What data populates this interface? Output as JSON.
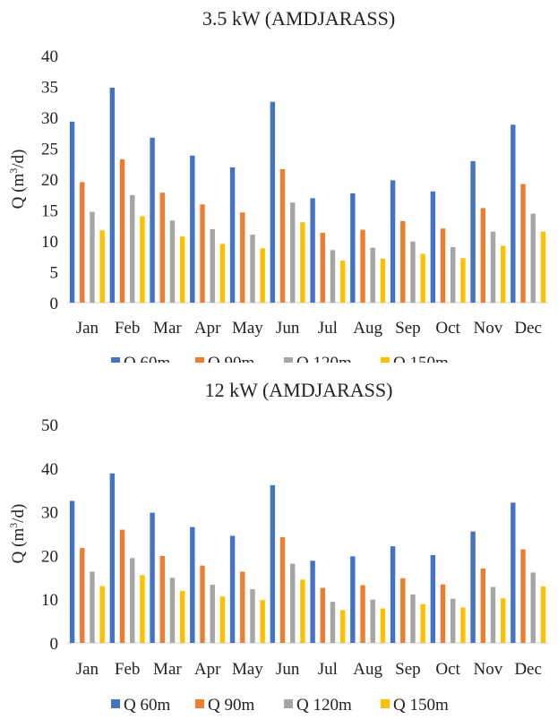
{
  "chart_data": [
    {
      "type": "bar",
      "title": "3.5 kW (AMDJARASS)",
      "xlabel": "",
      "ylabel_main": "Q (m",
      "ylabel_sup": "3",
      "ylabel_tail": "/d)",
      "ylim": [
        0,
        40
      ],
      "yticks": [
        0,
        5,
        10,
        15,
        20,
        25,
        30,
        35,
        40
      ],
      "grid": false,
      "legend_position": "bottom",
      "categories": [
        "Jan",
        "Feb",
        "Mar",
        "Apr",
        "May",
        "Jun",
        "Jul",
        "Aug",
        "Sep",
        "Oct",
        "Nov",
        "Dec"
      ],
      "series": [
        {
          "name": "Q 60m",
          "color": "#4472C4",
          "values": [
            29.3,
            34.8,
            26.7,
            23.8,
            21.9,
            32.5,
            16.9,
            17.7,
            19.8,
            18.0,
            22.9,
            28.8
          ]
        },
        {
          "name": "Q 90m",
          "color": "#ED7D31",
          "values": [
            19.5,
            23.2,
            17.8,
            15.9,
            14.6,
            21.6,
            11.3,
            11.8,
            13.2,
            12.0,
            15.3,
            19.2
          ]
        },
        {
          "name": "Q 120m",
          "color": "#A5A5A5",
          "values": [
            14.7,
            17.4,
            13.3,
            11.9,
            11.0,
            16.2,
            8.5,
            8.9,
            9.9,
            9.0,
            11.5,
            14.4
          ]
        },
        {
          "name": "Q 150m",
          "color": "#FFC000",
          "values": [
            11.7,
            14.0,
            10.7,
            9.5,
            8.8,
            13.0,
            6.8,
            7.1,
            7.9,
            7.2,
            9.2,
            11.5
          ]
        }
      ]
    },
    {
      "type": "bar",
      "title": "12 kW (AMDJARASS)",
      "xlabel": "",
      "ylabel_main": "Q (m",
      "ylabel_sup": "3",
      "ylabel_tail": "/d)",
      "ylim": [
        0,
        50
      ],
      "yticks": [
        0,
        10,
        20,
        30,
        40,
        50
      ],
      "grid": false,
      "legend_position": "bottom",
      "categories": [
        "Jan",
        "Feb",
        "Mar",
        "Apr",
        "May",
        "Jun",
        "Jul",
        "Aug",
        "Sep",
        "Oct",
        "Nov",
        "Dec"
      ],
      "series": [
        {
          "name": "Q 60m",
          "color": "#4472C4",
          "values": [
            32.5,
            38.8,
            29.8,
            26.5,
            24.5,
            36.1,
            18.8,
            19.8,
            22.1,
            20.1,
            25.5,
            32.1
          ]
        },
        {
          "name": "Q 90m",
          "color": "#ED7D31",
          "values": [
            21.7,
            25.9,
            19.9,
            17.7,
            16.3,
            24.2,
            12.6,
            13.2,
            14.8,
            13.4,
            17.0,
            21.4
          ]
        },
        {
          "name": "Q 120m",
          "color": "#A5A5A5",
          "values": [
            16.3,
            19.4,
            14.9,
            13.3,
            12.3,
            18.1,
            9.4,
            9.9,
            11.1,
            10.1,
            12.8,
            16.1
          ]
        },
        {
          "name": "Q 150m",
          "color": "#FFC000",
          "values": [
            13.0,
            15.5,
            11.9,
            10.6,
            9.8,
            14.5,
            7.5,
            7.9,
            8.9,
            8.1,
            10.2,
            12.9
          ]
        }
      ]
    }
  ]
}
